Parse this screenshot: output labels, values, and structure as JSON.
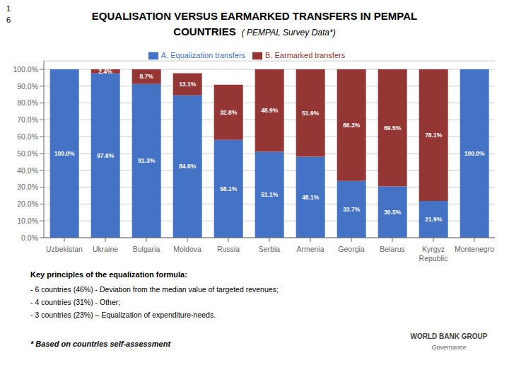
{
  "chart_data": {
    "type": "bar",
    "title": "EQUALISATION VERSUS EARMARKED TRANSFERS IN PEMPAL\nCOUNTRIES",
    "subtitle": "( PEMPAL Survey Data*)",
    "categories": [
      "Uzbekistan",
      "Ukraine",
      "Bulgaria",
      "Moldova",
      "Russia",
      "Serbia",
      "Armenia",
      "Georgia",
      "Belarus",
      "Kyrgyz\nRepublic",
      "Montenegro"
    ],
    "series": [
      {
        "name": "A. Equalization transfers",
        "color": "#4472C4",
        "values": [
          100.0,
          97.6,
          91.3,
          84.6,
          58.1,
          51.1,
          48.1,
          33.7,
          30.5,
          21.9,
          100.0
        ],
        "value_labels": [
          "100.0%",
          "97.6%",
          "91.3%",
          "84.6%",
          "58.1%",
          "51.1%",
          "48.1%",
          "33.7%",
          "30.5%",
          "21.9%",
          "100.0%"
        ]
      },
      {
        "name": "B. Earmarked transfers",
        "color": "#943634",
        "values": [
          0.0,
          2.4,
          8.7,
          13.1,
          32.8,
          48.9,
          51.9,
          66.3,
          69.5,
          78.1,
          0.0
        ],
        "value_labels": [
          null,
          "2.4%",
          "8.7%",
          "13.1%",
          "32.8%",
          "48.9%",
          "51.9%",
          "66.3%",
          "69.5%",
          "78.1%",
          null
        ]
      }
    ],
    "ylim": [
      0,
      105
    ],
    "yticks": [
      {
        "value": 0.0,
        "label": "0.0%"
      },
      {
        "value": 10.0,
        "label": "10.0%"
      },
      {
        "value": 20.0,
        "label": "20.0%"
      },
      {
        "value": 30.0,
        "label": "30.0%"
      },
      {
        "value": 40.0,
        "label": "40.0%"
      },
      {
        "value": 50.0,
        "label": "50.0%"
      },
      {
        "value": 60.0,
        "label": "60.0%"
      },
      {
        "value": 70.0,
        "label": "70.0%"
      },
      {
        "value": 80.0,
        "label": "80.0%"
      },
      {
        "value": 90.0,
        "label": "90.0%"
      },
      {
        "value": 100.0,
        "label": "100.0%"
      }
    ],
    "grid": true,
    "stacked": true,
    "legend": "top",
    "data_labels": true,
    "annotations": [
      "1",
      "6",
      "Key principles of the equalization formula:",
      "- 6 countries (46%) - Deviation from the median value of targeted revenues;",
      "- 4 countries (31%) - Other;",
      "- 3 countries (23%) – Equalization of expenditure-needs.",
      "* Based on countries self-assessment",
      "WORLD BANK GROUP",
      "Governance"
    ]
  }
}
